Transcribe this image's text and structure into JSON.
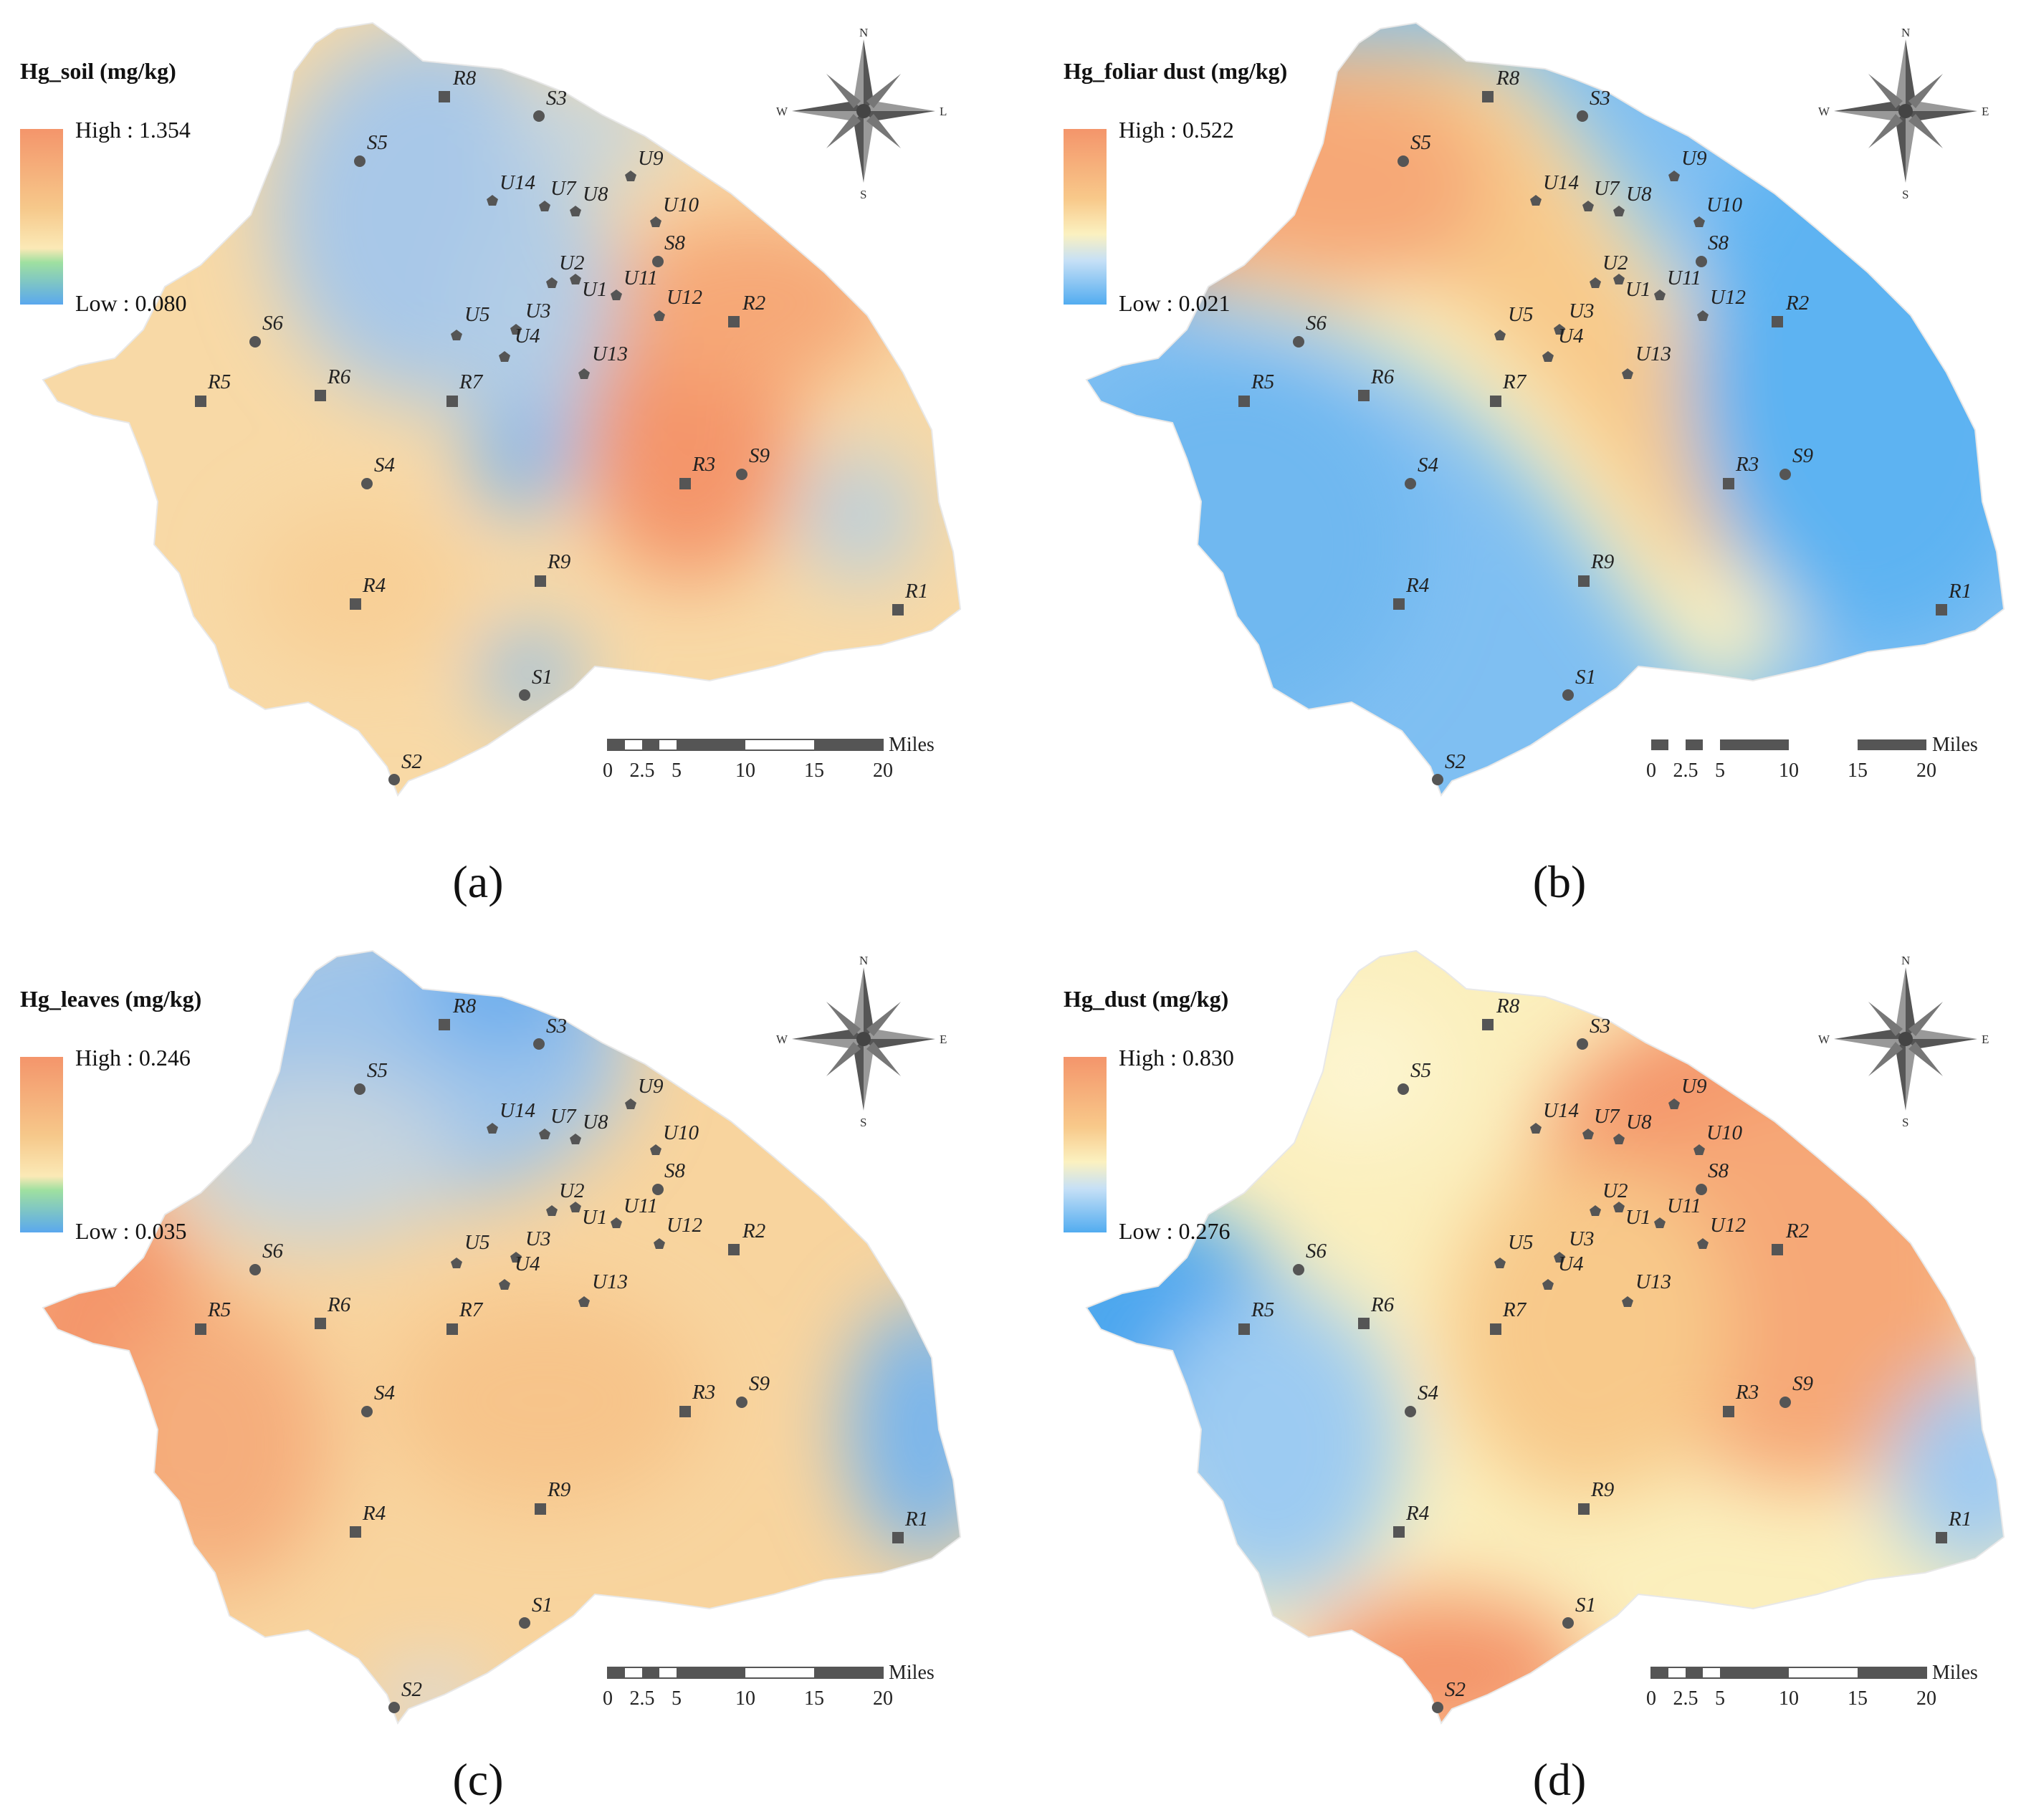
{
  "panels": [
    {
      "id": "a",
      "caption": "(a)",
      "legend_title": "Hg_soil (mg/kg)",
      "high_label": "High : 1.354",
      "low_label": "Low : 0.080",
      "compass": {
        "n": "N",
        "s": "S",
        "w": "W",
        "e": "L"
      },
      "ramp": [
        "#f4956b",
        "#f6c88a",
        "#fbe9b6",
        "#9fe0a0",
        "#5aa8ee"
      ]
    },
    {
      "id": "b",
      "caption": "(b)",
      "legend_title": "Hg_foliar dust (mg/kg)",
      "high_label": "High : 0.522",
      "low_label": "Low : 0.021",
      "compass": {
        "n": "N",
        "s": "S",
        "w": "W",
        "e": "E"
      },
      "ramp": [
        "#f4956b",
        "#f8c98a",
        "#fbf1c0",
        "#c6e0f6",
        "#52acf0"
      ]
    },
    {
      "id": "c",
      "caption": "(c)",
      "legend_title": "Hg_leaves (mg/kg)",
      "high_label": "High : 0.246",
      "low_label": "Low : 0.035",
      "compass": {
        "n": "N",
        "s": "S",
        "w": "W",
        "e": "E"
      },
      "ramp": [
        "#f4956b",
        "#f6c88a",
        "#fbe9b6",
        "#9fe0a0",
        "#5aa8ee"
      ]
    },
    {
      "id": "d",
      "caption": "(d)",
      "legend_title": "Hg_dust (mg/kg)",
      "high_label": "High : 0.830",
      "low_label": "Low : 0.276",
      "compass": {
        "n": "N",
        "s": "S",
        "w": "W",
        "e": "E"
      },
      "ramp": [
        "#f4956b",
        "#f8c98a",
        "#fbf1c0",
        "#c6e0f6",
        "#52acf0"
      ]
    }
  ],
  "scale_bar": {
    "ticks": [
      "0",
      "2.5",
      "5",
      "10",
      "15",
      "20"
    ],
    "unit": "Miles"
  },
  "sites": {
    "squares": [
      "R8",
      "R5",
      "R6",
      "R7",
      "R2",
      "R3",
      "R4",
      "R9",
      "R1"
    ],
    "circles": [
      "S3",
      "S5",
      "S6",
      "S4",
      "S1",
      "S2",
      "S8",
      "S9"
    ],
    "pentagons": [
      "U9",
      "U14",
      "U7",
      "U8",
      "U10",
      "U2",
      "U1",
      "U11",
      "U12",
      "U5",
      "U3",
      "U4",
      "U13"
    ]
  }
}
